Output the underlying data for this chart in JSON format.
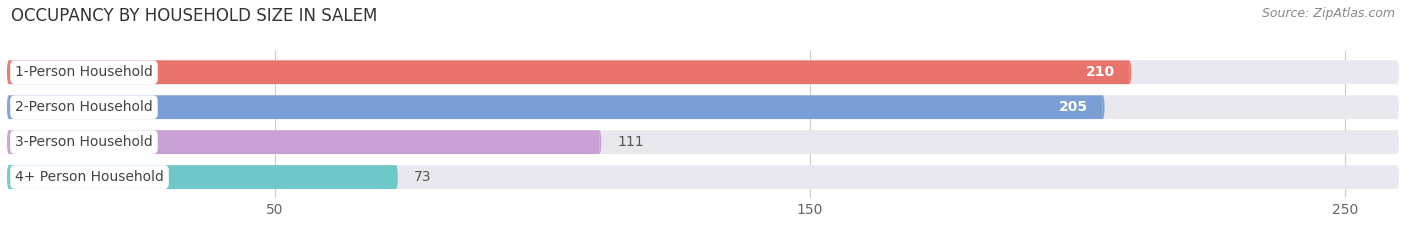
{
  "title": "OCCUPANCY BY HOUSEHOLD SIZE IN SALEM",
  "source": "Source: ZipAtlas.com",
  "categories": [
    "1-Person Household",
    "2-Person Household",
    "3-Person Household",
    "4+ Person Household"
  ],
  "values": [
    210,
    205,
    111,
    73
  ],
  "bar_colors": [
    "#e8736a",
    "#7b9fd4",
    "#c9a0d4",
    "#6ec8c8"
  ],
  "bar_bg_color": "#e8e8ee",
  "xlim": [
    0,
    260
  ],
  "xticks": [
    50,
    150,
    250
  ],
  "title_fontsize": 12,
  "source_fontsize": 9,
  "label_fontsize": 10,
  "value_fontsize": 10,
  "tick_fontsize": 10,
  "bar_height": 0.68,
  "figsize": [
    14.06,
    2.33
  ],
  "dpi": 100,
  "bg_color": "#ffffff",
  "grid_color": "#cccccc",
  "title_color": "#333333",
  "source_color": "#888888",
  "label_color": "#444444",
  "value_inside_color": "#ffffff",
  "value_outside_color": "#555555"
}
